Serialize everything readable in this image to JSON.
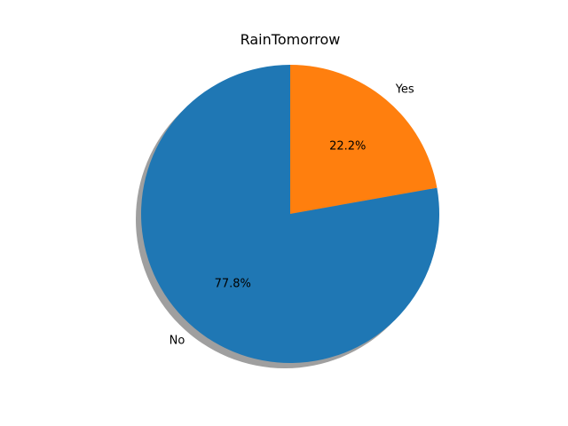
{
  "chart_data": {
    "type": "pie",
    "title": "RainTomorrow",
    "slices": [
      {
        "label": "Yes",
        "value": 22.2,
        "pct_label": "22.2%",
        "color": "#ff7f0e"
      },
      {
        "label": "No",
        "value": 77.8,
        "pct_label": "77.8%",
        "color": "#1f77b4"
      }
    ],
    "start_angle_deg": 90,
    "shadow": true,
    "legend": "none"
  }
}
